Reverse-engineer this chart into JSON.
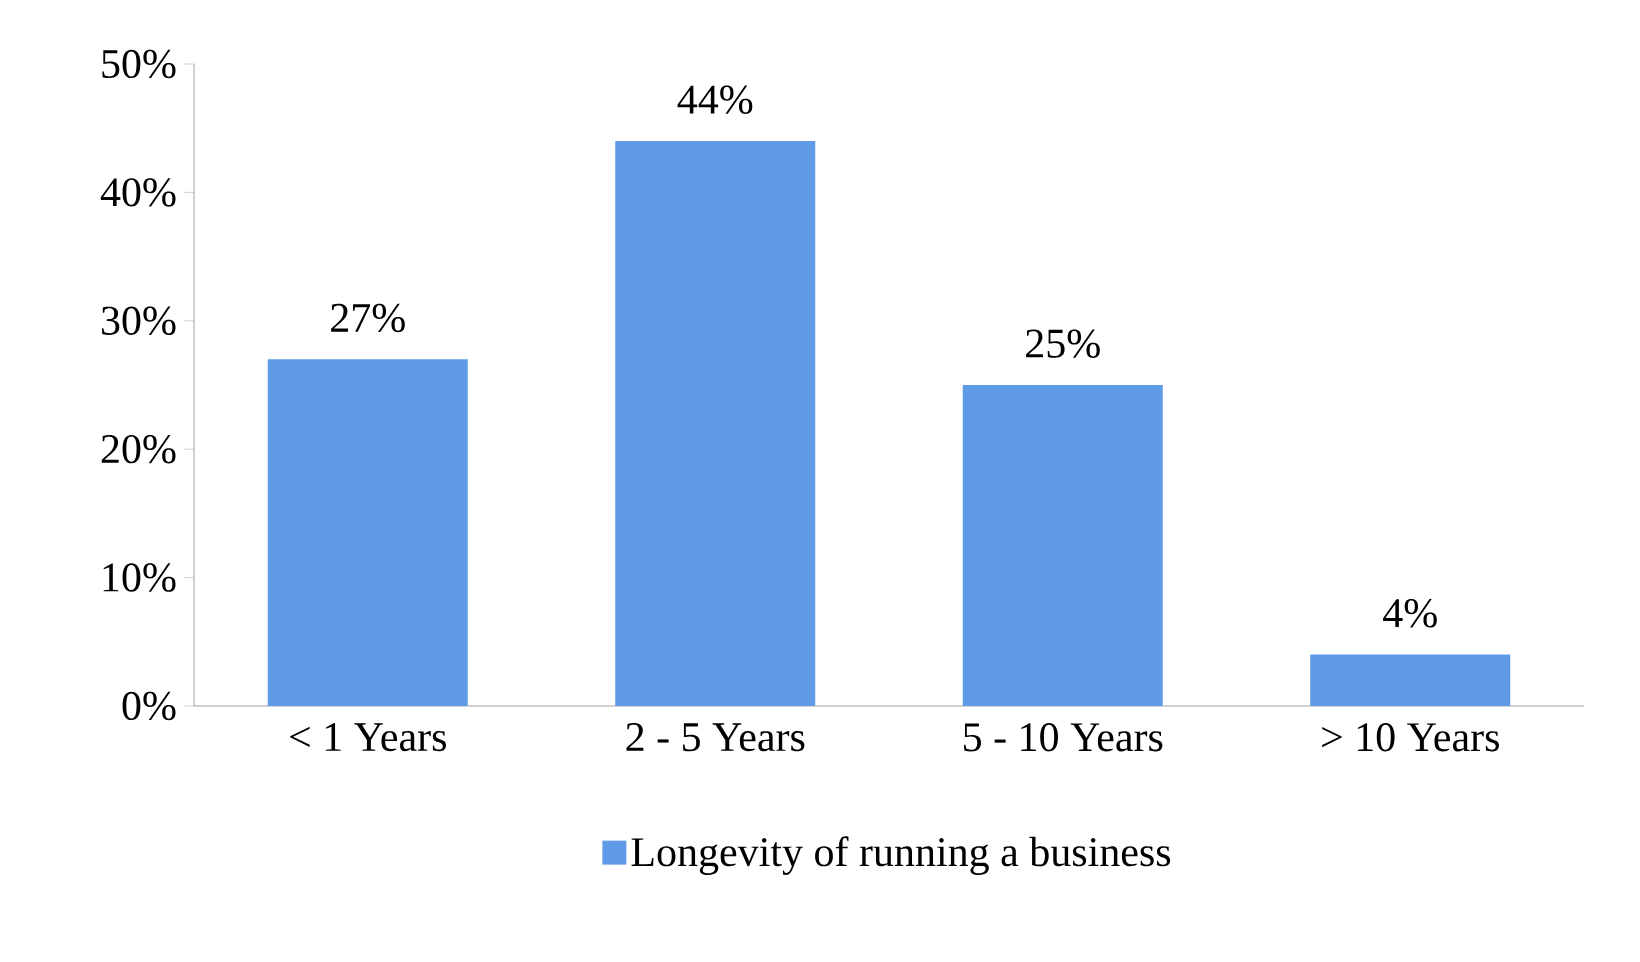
{
  "chart_data": {
    "type": "bar",
    "categories": [
      "< 1 Years",
      "2 - 5 Years",
      "5 - 10 Years",
      "> 10 Years"
    ],
    "series": [
      {
        "name": "Longevity of running a business",
        "color": "#5f9ae6",
        "values": [
          27,
          44,
          25,
          4
        ],
        "value_labels": [
          "27%",
          "44%",
          "25%",
          "4%"
        ]
      }
    ],
    "ylim": [
      0,
      50
    ],
    "yticks": [
      {
        "value": 0,
        "label": "0%"
      },
      {
        "value": 10,
        "label": "10%"
      },
      {
        "value": 20,
        "label": "20%"
      },
      {
        "value": 30,
        "label": "30%"
      },
      {
        "value": 40,
        "label": "40%"
      },
      {
        "value": 50,
        "label": "50%"
      }
    ],
    "grid": false,
    "legend": "bottom"
  }
}
